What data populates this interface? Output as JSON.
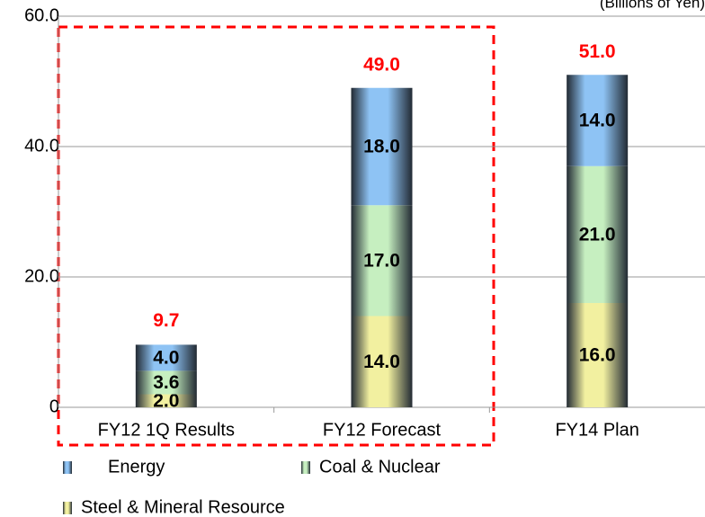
{
  "chart_data": {
    "type": "stacked_bar",
    "unit_note": "(Billions of Yen)",
    "categories": [
      "FY12 1Q Results",
      "FY12 Forecast",
      "FY14 Plan"
    ],
    "series": [
      {
        "name": "Steel & Mineral Resource",
        "color": "#f2f0a0",
        "values": [
          2.0,
          14.0,
          16.0
        ],
        "value_labels": [
          "2.0",
          "14.0",
          "16.0"
        ]
      },
      {
        "name": "Coal & Nuclear",
        "color": "#c6efc0",
        "values": [
          3.6,
          17.0,
          21.0
        ],
        "value_labels": [
          "3.6",
          "17.0",
          "21.0"
        ]
      },
      {
        "name": "Energy",
        "color": "#8ec3f4",
        "values": [
          4.0,
          18.0,
          14.0
        ],
        "value_labels": [
          "4.0",
          "18.0",
          "14.0"
        ]
      }
    ],
    "totals": {
      "values": [
        9.7,
        49.0,
        51.0
      ],
      "value_labels": [
        "9.7",
        "49.0",
        "51.0"
      ],
      "color": "#ff0000"
    },
    "ylim": [
      0,
      60
    ],
    "yticks": [
      0,
      {
        "value": 20,
        "label": "20.0"
      },
      {
        "value": 40,
        "label": "40.0"
      },
      {
        "value": 60,
        "label": "60.0"
      }
    ],
    "grid": true
  }
}
